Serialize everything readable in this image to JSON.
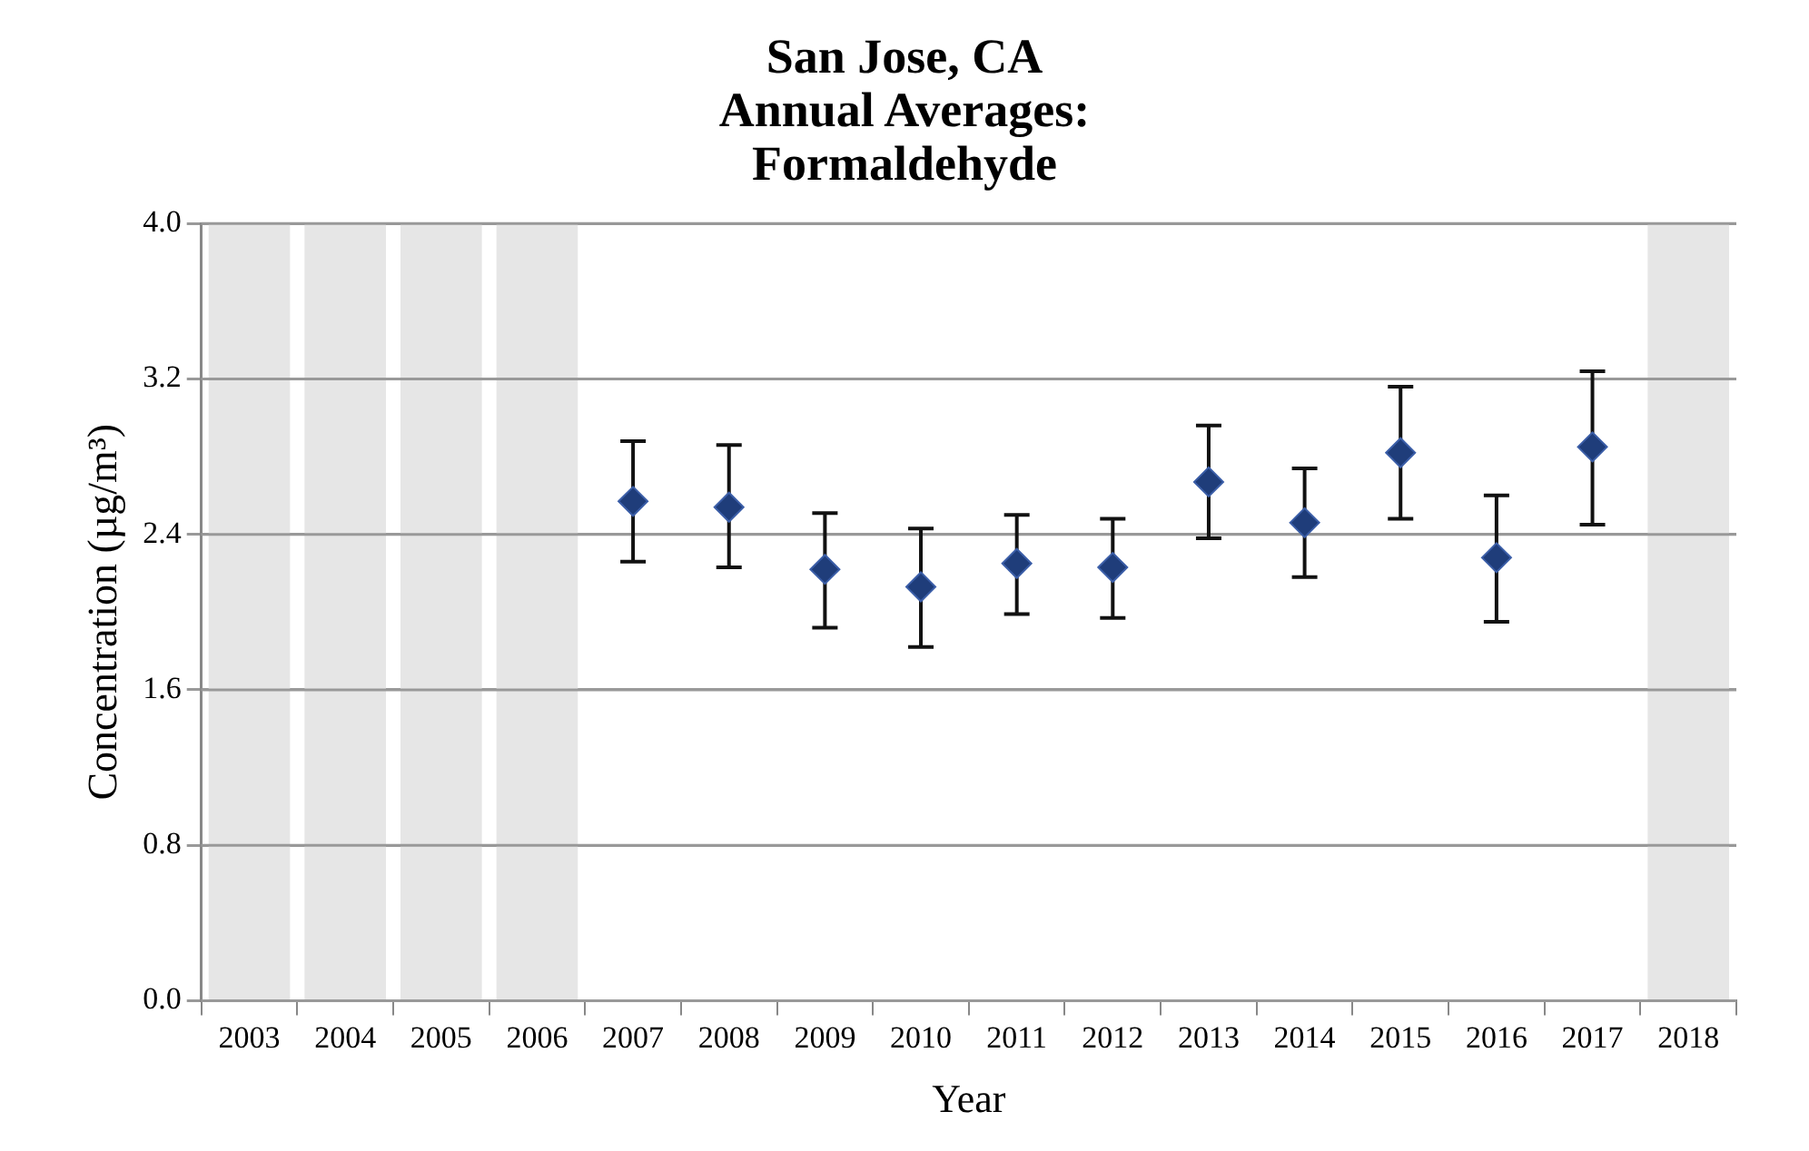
{
  "chart_data": {
    "type": "scatter",
    "title": "San Jose, CA\nAnnual Averages:\nFormaldehyde",
    "xlabel": "Year",
    "ylabel": "Concentration (µg/m³)",
    "categories": [
      "2003",
      "2004",
      "2005",
      "2006",
      "2007",
      "2008",
      "2009",
      "2010",
      "2011",
      "2012",
      "2013",
      "2014",
      "2015",
      "2016",
      "2017",
      "2018"
    ],
    "values": [
      null,
      null,
      null,
      null,
      2.57,
      2.54,
      2.22,
      2.13,
      2.25,
      2.23,
      2.67,
      2.46,
      2.82,
      2.28,
      2.85,
      null
    ],
    "errors": [
      null,
      null,
      null,
      null,
      [
        2.26,
        2.88
      ],
      [
        2.23,
        2.86
      ],
      [
        1.92,
        2.51
      ],
      [
        1.82,
        2.43
      ],
      [
        1.99,
        2.5
      ],
      [
        1.97,
        2.48
      ],
      [
        2.38,
        2.96
      ],
      [
        2.18,
        2.74
      ],
      [
        2.48,
        3.16
      ],
      [
        1.95,
        2.6
      ],
      [
        2.45,
        3.24
      ],
      null
    ],
    "color": "#1f3d7a",
    "marker": "diamond",
    "grid": "y",
    "legend": false,
    "ylim": [
      0,
      4
    ],
    "yticks": [
      {
        "value": 0,
        "label": "0.0"
      },
      {
        "value": 0.8,
        "label": "0.8"
      },
      {
        "value": 1.6,
        "label": "1.6"
      },
      {
        "value": 2.4,
        "label": "2.4"
      },
      {
        "value": 3.2,
        "label": "3.2"
      },
      {
        "value": 4,
        "label": "4.0"
      }
    ],
    "bands": [
      {
        "axis": "x",
        "from": "2003",
        "to": "2003",
        "color": "#e6e6e6"
      },
      {
        "axis": "x",
        "from": "2004",
        "to": "2004",
        "color": "#e6e6e6"
      },
      {
        "axis": "x",
        "from": "2005",
        "to": "2005",
        "color": "#e6e6e6"
      },
      {
        "axis": "x",
        "from": "2006",
        "to": "2006",
        "color": "#e6e6e6"
      },
      {
        "axis": "x",
        "from": "2018",
        "to": "2018",
        "color": "#e6e6e6"
      }
    ]
  }
}
